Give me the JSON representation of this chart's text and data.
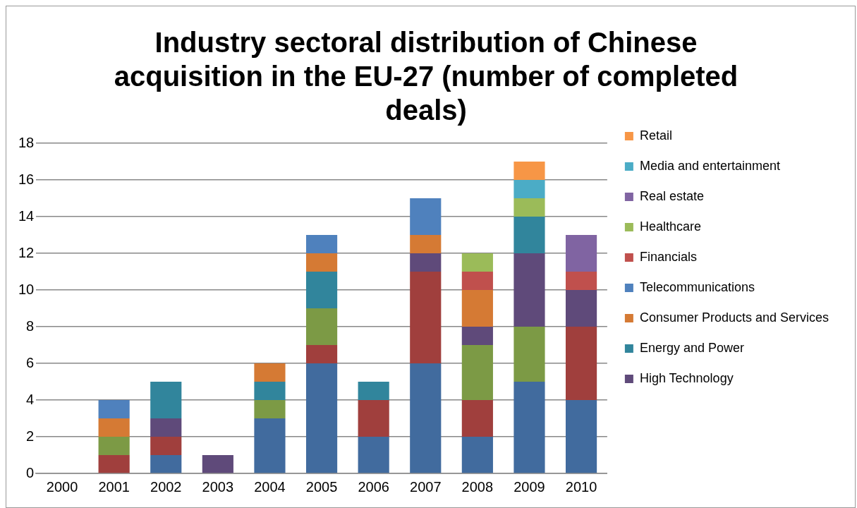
{
  "chart_data": {
    "type": "bar",
    "stacked": true,
    "title": "Industry sectoral distribution of Chinese acquisition in the EU-27 (number of completed deals)",
    "categories": [
      "2000",
      "2001",
      "2002",
      "2003",
      "2004",
      "2005",
      "2006",
      "2007",
      "2008",
      "2009",
      "2010"
    ],
    "ylim": [
      0,
      18
    ],
    "yticks": [
      0,
      2,
      4,
      6,
      8,
      10,
      12,
      14,
      16,
      18
    ],
    "grid": "y",
    "legend": "right",
    "series": [
      {
        "color": "#416b9e",
        "values": [
          null,
          null,
          1,
          null,
          3,
          6,
          2,
          6,
          2,
          5,
          4
        ]
      },
      {
        "color": "#a03f3d",
        "values": [
          null,
          1,
          1,
          null,
          null,
          1,
          2,
          5,
          2,
          null,
          4
        ]
      },
      {
        "color": "#7c9a45",
        "values": [
          null,
          1,
          null,
          null,
          1,
          2,
          null,
          null,
          3,
          3,
          null
        ]
      },
      {
        "name": "High Technology",
        "color": "#5f4a7a",
        "values": [
          null,
          null,
          1,
          1,
          null,
          null,
          null,
          1,
          1,
          4,
          2
        ]
      },
      {
        "name": "Energy and Power",
        "color": "#31859c",
        "values": [
          null,
          null,
          2,
          null,
          1,
          2,
          1,
          null,
          null,
          2,
          null
        ]
      },
      {
        "name": "Consumer Products and Services",
        "color": "#d57a34",
        "values": [
          null,
          1,
          null,
          null,
          1,
          1,
          null,
          1,
          2,
          null,
          null
        ]
      },
      {
        "name": "Telecommunications",
        "color": "#4f81bd",
        "values": [
          null,
          1,
          null,
          null,
          null,
          1,
          null,
          2,
          null,
          null,
          null
        ]
      },
      {
        "name": "Financials",
        "color": "#c0504d",
        "values": [
          null,
          null,
          null,
          null,
          null,
          null,
          null,
          null,
          1,
          null,
          1
        ]
      },
      {
        "name": "Healthcare",
        "color": "#9bbb59",
        "values": [
          null,
          null,
          null,
          null,
          null,
          null,
          null,
          null,
          1,
          1,
          null
        ]
      },
      {
        "name": "Real estate",
        "color": "#8064a2",
        "values": [
          null,
          null,
          null,
          null,
          null,
          null,
          null,
          null,
          null,
          null,
          2
        ]
      },
      {
        "name": "Media and entertainment",
        "color": "#4bacc6",
        "values": [
          null,
          null,
          null,
          null,
          null,
          null,
          null,
          null,
          null,
          1,
          null
        ]
      },
      {
        "name": "Retail",
        "color": "#f79646",
        "values": [
          null,
          null,
          null,
          null,
          null,
          null,
          null,
          null,
          null,
          1,
          null
        ]
      }
    ]
  }
}
